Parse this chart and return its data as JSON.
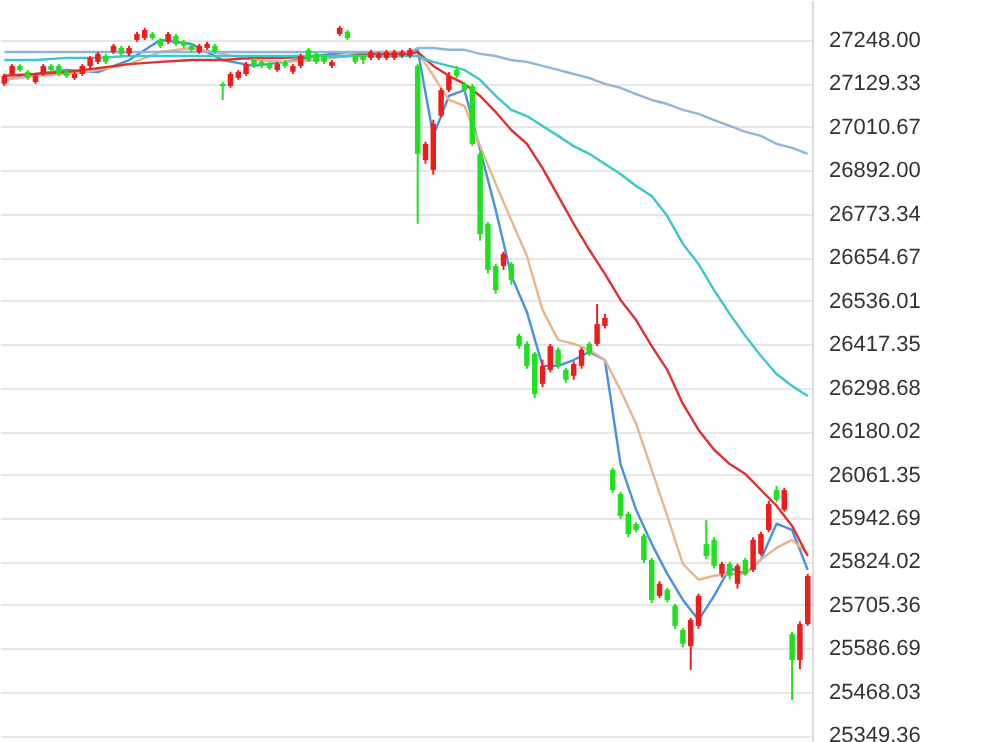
{
  "chart_data": {
    "type": "candlestick",
    "categories": [
      null,
      null,
      null,
      null,
      null,
      null,
      null,
      null,
      null,
      null,
      null,
      null,
      null,
      null,
      null,
      null,
      null,
      null,
      null,
      null,
      null,
      null,
      null,
      null,
      null,
      null,
      null,
      null,
      null,
      null,
      null,
      null,
      null,
      null,
      null,
      null,
      null,
      null,
      null,
      null,
      null,
      null,
      null,
      null,
      null,
      null,
      null,
      null,
      null,
      null,
      null,
      null,
      null,
      null,
      null,
      null,
      null,
      null,
      null,
      null,
      null,
      null,
      null,
      null,
      null,
      null,
      null,
      null,
      null,
      null,
      null,
      null,
      null,
      null,
      null,
      null,
      null,
      null,
      null,
      null,
      null,
      null,
      null,
      null,
      null,
      null,
      null,
      null,
      null,
      null,
      null,
      null,
      null,
      null,
      null,
      null,
      null,
      null,
      null,
      null,
      null,
      null,
      null,
      null
    ],
    "ohlc": [
      [
        27128,
        27156,
        27122,
        27150
      ],
      [
        27155,
        27182,
        27150,
        27177
      ],
      [
        27177,
        27182,
        27161,
        27166
      ],
      [
        27161,
        27166,
        27139,
        27144
      ],
      [
        27133,
        27155,
        27128,
        27150
      ],
      [
        27155,
        27182,
        27150,
        27177
      ],
      [
        27177,
        27182,
        27161,
        27166
      ],
      [
        27177,
        27182,
        27150,
        27155
      ],
      [
        27161,
        27166,
        27144,
        27150
      ],
      [
        27144,
        27161,
        27139,
        27155
      ],
      [
        27155,
        27182,
        27150,
        27177
      ],
      [
        27177,
        27204,
        27171,
        27199
      ],
      [
        27188,
        27215,
        27182,
        27210
      ],
      [
        27204,
        27210,
        27182,
        27188
      ],
      [
        27215,
        27237,
        27210,
        27232
      ],
      [
        27226,
        27232,
        27204,
        27210
      ],
      [
        27210,
        27232,
        27204,
        27226
      ],
      [
        27248,
        27270,
        27243,
        27264
      ],
      [
        27253,
        27281,
        27248,
        27275
      ],
      [
        27264,
        27270,
        27248,
        27253
      ],
      [
        27248,
        27253,
        27226,
        27232
      ],
      [
        27243,
        27270,
        27237,
        27264
      ],
      [
        27259,
        27264,
        27232,
        27237
      ],
      [
        27243,
        27248,
        27226,
        27232
      ],
      [
        27232,
        27237,
        27215,
        27221
      ],
      [
        27215,
        27237,
        27210,
        27232
      ],
      [
        27226,
        27243,
        27221,
        27237
      ],
      [
        27232,
        27237,
        27210,
        27215
      ],
      [
        27128,
        27133,
        27084,
        27122
      ],
      [
        27122,
        27161,
        27117,
        27155
      ],
      [
        27144,
        27166,
        27139,
        27161
      ],
      [
        27155,
        27188,
        27150,
        27182
      ],
      [
        27193,
        27199,
        27171,
        27177
      ],
      [
        27188,
        27193,
        27171,
        27177
      ],
      [
        27182,
        27188,
        27166,
        27171
      ],
      [
        27166,
        27188,
        27161,
        27182
      ],
      [
        27188,
        27193,
        27171,
        27177
      ],
      [
        27161,
        27182,
        27155,
        27177
      ],
      [
        27177,
        27210,
        27171,
        27204
      ],
      [
        27221,
        27226,
        27188,
        27193
      ],
      [
        27210,
        27215,
        27182,
        27188
      ],
      [
        27204,
        27210,
        27182,
        27188
      ],
      [
        27177,
        27193,
        27171,
        27188
      ],
      [
        27264,
        27286,
        27259,
        27281
      ],
      [
        27270,
        27275,
        27248,
        27253
      ],
      [
        27204,
        27210,
        27182,
        27188
      ],
      [
        27204,
        27210,
        27182,
        27193
      ],
      [
        27199,
        27221,
        27193,
        27215
      ],
      [
        27199,
        27215,
        27193,
        27210
      ],
      [
        27199,
        27221,
        27193,
        27215
      ],
      [
        27199,
        27221,
        27193,
        27215
      ],
      [
        27204,
        27221,
        27199,
        27215
      ],
      [
        27204,
        27226,
        27199,
        27221
      ],
      [
        27177,
        27182,
        26746,
        26937
      ],
      [
        26920,
        26970,
        26910,
        26964
      ],
      [
        26893,
        27030,
        26880,
        27019
      ],
      [
        27041,
        27117,
        27035,
        27111
      ],
      [
        27111,
        27160,
        27105,
        27150
      ],
      [
        27166,
        27177,
        27144,
        27150
      ],
      [
        27128,
        27133,
        27105,
        27111
      ],
      [
        27122,
        27128,
        26958,
        26964
      ],
      [
        26937,
        26942,
        26700,
        26718
      ],
      [
        26746,
        26751,
        26610,
        26620
      ],
      [
        26631,
        26637,
        26555,
        26565
      ],
      [
        26631,
        26670,
        26620,
        26664
      ],
      [
        26636,
        26642,
        26580,
        26593
      ],
      [
        26440,
        26446,
        26405,
        26412
      ],
      [
        26418,
        26425,
        26350,
        26358
      ],
      [
        26391,
        26396,
        26270,
        26281
      ],
      [
        26309,
        26375,
        26300,
        26358
      ],
      [
        26347,
        26418,
        26340,
        26412
      ],
      [
        26402,
        26408,
        26350,
        26358
      ],
      [
        26347,
        26352,
        26312,
        26320
      ],
      [
        26331,
        26370,
        26320,
        26363
      ],
      [
        26358,
        26408,
        26350,
        26402
      ],
      [
        26418,
        26424,
        26385,
        26391
      ],
      [
        26418,
        26527,
        26412,
        26472
      ],
      [
        26467,
        26500,
        26460,
        26489
      ],
      [
        26074,
        26080,
        26010,
        26019
      ],
      [
        26008,
        26014,
        25940,
        25948
      ],
      [
        25954,
        25960,
        25890,
        25899
      ],
      [
        25926,
        25932,
        25904,
        25910
      ],
      [
        25894,
        25900,
        25820,
        25828
      ],
      [
        25828,
        25834,
        25710,
        25719
      ],
      [
        25730,
        25770,
        25724,
        25763
      ],
      [
        25747,
        25752,
        25712,
        25719
      ],
      [
        25703,
        25708,
        25640,
        25648
      ],
      [
        25637,
        25642,
        25590,
        25599
      ],
      [
        25593,
        25670,
        25528,
        25664
      ],
      [
        25648,
        25736,
        25640,
        25730
      ],
      [
        25872,
        25937,
        25830,
        25839
      ],
      [
        25883,
        25890,
        25805,
        25812
      ],
      [
        25790,
        25823,
        25780,
        25817
      ],
      [
        25817,
        25823,
        25775,
        25785
      ],
      [
        25763,
        25818,
        25750,
        25812
      ],
      [
        25828,
        25834,
        25785,
        25790
      ],
      [
        25801,
        25890,
        25795,
        25883
      ],
      [
        25845,
        25905,
        25840,
        25899
      ],
      [
        25910,
        25990,
        25904,
        25981
      ],
      [
        26019,
        26030,
        25986,
        25992
      ],
      [
        25965,
        26025,
        25960,
        26019
      ],
      [
        25626,
        25632,
        25446,
        25555
      ],
      [
        25555,
        25660,
        25530,
        25653
      ],
      [
        25653,
        25790,
        25648,
        25784
      ]
    ],
    "colors": [
      "#f01c1c",
      "#f01c1c",
      "#20e020",
      "#20e020",
      "#f01c1c",
      "#f01c1c",
      "#20e020",
      "#20e020",
      "#20e020",
      "#f01c1c",
      "#f01c1c",
      "#f01c1c",
      "#f01c1c",
      "#20e020",
      "#f01c1c",
      "#20e020",
      "#f01c1c",
      "#f01c1c",
      "#f01c1c",
      "#20e020",
      "#20e020",
      "#f01c1c",
      "#20e020",
      "#20e020",
      "#20e020",
      "#f01c1c",
      "#f01c1c",
      "#20e020",
      "#20e020",
      "#f01c1c",
      "#f01c1c",
      "#f01c1c",
      "#20e020",
      "#20e020",
      "#20e020",
      "#f01c1c",
      "#20e020",
      "#f01c1c",
      "#f01c1c",
      "#20e020",
      "#20e020",
      "#20e020",
      "#f01c1c",
      "#f01c1c",
      "#20e020",
      "#20e020",
      "#20e020",
      "#f01c1c",
      "#f01c1c",
      "#f01c1c",
      "#f01c1c",
      "#f01c1c",
      "#f01c1c",
      "#20e020",
      "#f01c1c",
      "#f01c1c",
      "#f01c1c",
      "#f01c1c",
      "#20e020",
      "#20e020",
      "#20e020",
      "#20e020",
      "#20e020",
      "#20e020",
      "#f01c1c",
      "#20e020",
      "#20e020",
      "#20e020",
      "#20e020",
      "#f01c1c",
      "#f01c1c",
      "#20e020",
      "#20e020",
      "#f01c1c",
      "#f01c1c",
      "#20e020",
      "#f01c1c",
      "#f01c1c",
      "#20e020",
      "#20e020",
      "#20e020",
      "#20e020",
      "#20e020",
      "#20e020",
      "#f01c1c",
      "#20e020",
      "#20e020",
      "#20e020",
      "#f01c1c",
      "#f01c1c",
      "#20e020",
      "#20e020",
      "#f01c1c",
      "#20e020",
      "#f01c1c",
      "#20e020",
      "#f01c1c",
      "#f01c1c",
      "#f01c1c",
      "#20e020",
      "#f01c1c",
      "#20e020",
      "#f01c1c",
      "#f01c1c"
    ],
    "series": [
      {
        "type": "line",
        "color": "#4a8fe0",
        "values": [
          27139,
          null,
          null,
          null,
          27155,
          null,
          null,
          null,
          27166,
          null,
          null,
          null,
          27160,
          null,
          null,
          null,
          27193,
          null,
          null,
          null,
          27248,
          null,
          null,
          null,
          27237,
          null,
          null,
          null,
          27193,
          null,
          null,
          null,
          27177,
          null,
          null,
          null,
          27188,
          null,
          null,
          null,
          27204,
          null,
          null,
          null,
          27215,
          null,
          null,
          null,
          27210,
          null,
          null,
          null,
          27215,
          27221,
          null,
          26986,
          null,
          27095,
          null,
          27111,
          null,
          26948,
          null,
          26784,
          null,
          26604,
          null,
          26505,
          null,
          26358,
          null,
          26358,
          null,
          26374,
          null,
          26396,
          null,
          26374,
          null,
          26090,
          null,
          25965,
          null,
          25872,
          null,
          25790,
          null,
          25719,
          null,
          25664,
          null,
          25730,
          null,
          25806,
          null,
          25790,
          null,
          25829,
          null,
          25927,
          null,
          25910,
          null,
          25801
        ]
      },
      {
        "type": "line",
        "color": "#e8b48a",
        "values": [
          27139,
          null,
          null,
          null,
          27150,
          null,
          null,
          null,
          27155,
          null,
          null,
          null,
          27166,
          null,
          null,
          null,
          27182,
          null,
          null,
          null,
          27215,
          null,
          null,
          null,
          27226,
          null,
          null,
          null,
          27210,
          null,
          null,
          null,
          27193,
          null,
          null,
          null,
          27188,
          null,
          null,
          null,
          27193,
          null,
          null,
          null,
          27204,
          null,
          null,
          null,
          27210,
          null,
          null,
          null,
          27215,
          27215,
          null,
          27150,
          null,
          27084,
          null,
          27068,
          null,
          26958,
          null,
          26855,
          null,
          26756,
          null,
          26658,
          null,
          26511,
          null,
          26429,
          null,
          26418,
          null,
          26402,
          null,
          26374,
          null,
          26292,
          null,
          26200,
          null,
          26074,
          null,
          25948,
          null,
          25817,
          null,
          25774,
          null,
          25785,
          null,
          25790,
          null,
          25790,
          null,
          25829,
          null,
          25861,
          null,
          25883,
          null,
          25845
        ]
      },
      {
        "type": "line",
        "color": "#e03030",
        "values": [
          27150,
          null,
          null,
          null,
          27155,
          null,
          null,
          null,
          27160,
          null,
          null,
          null,
          27171,
          null,
          null,
          null,
          27182,
          null,
          null,
          null,
          27188,
          null,
          null,
          null,
          27193,
          null,
          null,
          null,
          27193,
          null,
          null,
          null,
          27199,
          null,
          null,
          null,
          27199,
          null,
          null,
          null,
          27204,
          null,
          null,
          null,
          27204,
          null,
          null,
          null,
          27210,
          null,
          null,
          null,
          27210,
          27215,
          null,
          27177,
          null,
          27150,
          null,
          27128,
          null,
          27095,
          null,
          27051,
          null,
          27002,
          null,
          26964,
          null,
          26898,
          null,
          26822,
          null,
          26746,
          null,
          26675,
          null,
          26609,
          null,
          26538,
          null,
          26483,
          null,
          26412,
          null,
          26347,
          null,
          26254,
          null,
          26183,
          null,
          26129,
          null,
          26090,
          null,
          26063,
          null,
          26019,
          null,
          25976,
          null,
          25921,
          null,
          25839
        ]
      },
      {
        "type": "line",
        "color": "#3cc6d0",
        "values": [
          27193,
          null,
          null,
          null,
          27193,
          null,
          null,
          null,
          27199,
          null,
          null,
          null,
          27199,
          null,
          null,
          null,
          27204,
          null,
          null,
          null,
          27204,
          null,
          null,
          null,
          27204,
          null,
          null,
          null,
          27204,
          null,
          null,
          null,
          27204,
          null,
          null,
          null,
          27204,
          null,
          null,
          null,
          27204,
          null,
          null,
          null,
          27204,
          null,
          null,
          null,
          27204,
          null,
          null,
          null,
          27204,
          27204,
          null,
          27188,
          null,
          27177,
          null,
          27166,
          null,
          27139,
          null,
          27095,
          null,
          27057,
          null,
          27040,
          null,
          27013,
          null,
          26986,
          null,
          26958,
          null,
          26937,
          null,
          26909,
          null,
          26882,
          null,
          26849,
          null,
          26822,
          null,
          26767,
          null,
          26691,
          null,
          26636,
          null,
          26565,
          null,
          26500,
          null,
          26440,
          null,
          26385,
          null,
          26336,
          null,
          26303,
          null,
          26276
        ]
      },
      {
        "type": "line",
        "color": "#8fb6d8",
        "values": [
          27215,
          null,
          null,
          null,
          27215,
          null,
          null,
          null,
          27215,
          null,
          null,
          null,
          27215,
          null,
          null,
          null,
          27215,
          null,
          null,
          null,
          27215,
          null,
          null,
          null,
          27215,
          null,
          null,
          null,
          27215,
          null,
          null,
          null,
          27215,
          null,
          null,
          null,
          27215,
          null,
          null,
          null,
          27215,
          null,
          null,
          null,
          27215,
          null,
          null,
          null,
          27215,
          null,
          null,
          null,
          27215,
          27226,
          null,
          27226,
          null,
          27221,
          null,
          27221,
          null,
          27210,
          null,
          27204,
          null,
          27193,
          null,
          27188,
          null,
          27177,
          null,
          27166,
          null,
          27155,
          null,
          27144,
          null,
          27128,
          null,
          27117,
          null,
          27100,
          null,
          27084,
          null,
          27073,
          null,
          27057,
          null,
          27046,
          null,
          27029,
          null,
          27013,
          null,
          26997,
          null,
          26986,
          null,
          26964,
          null,
          26953,
          null,
          26937
        ]
      }
    ],
    "ylim": [
      25331,
      27357
    ],
    "yticks": [
      {
        "value": 27248,
        "label": "27248.00"
      },
      27129.33,
      27010.67,
      {
        "value": 26892,
        "label": "26892.00"
      },
      26773.34,
      26654.67,
      26536.01,
      26417.35,
      26298.68,
      26180.02,
      26061.35,
      25942.69,
      25824.02,
      25705.36,
      25586.69,
      25468.03,
      25349.36
    ],
    "grid": "y"
  }
}
